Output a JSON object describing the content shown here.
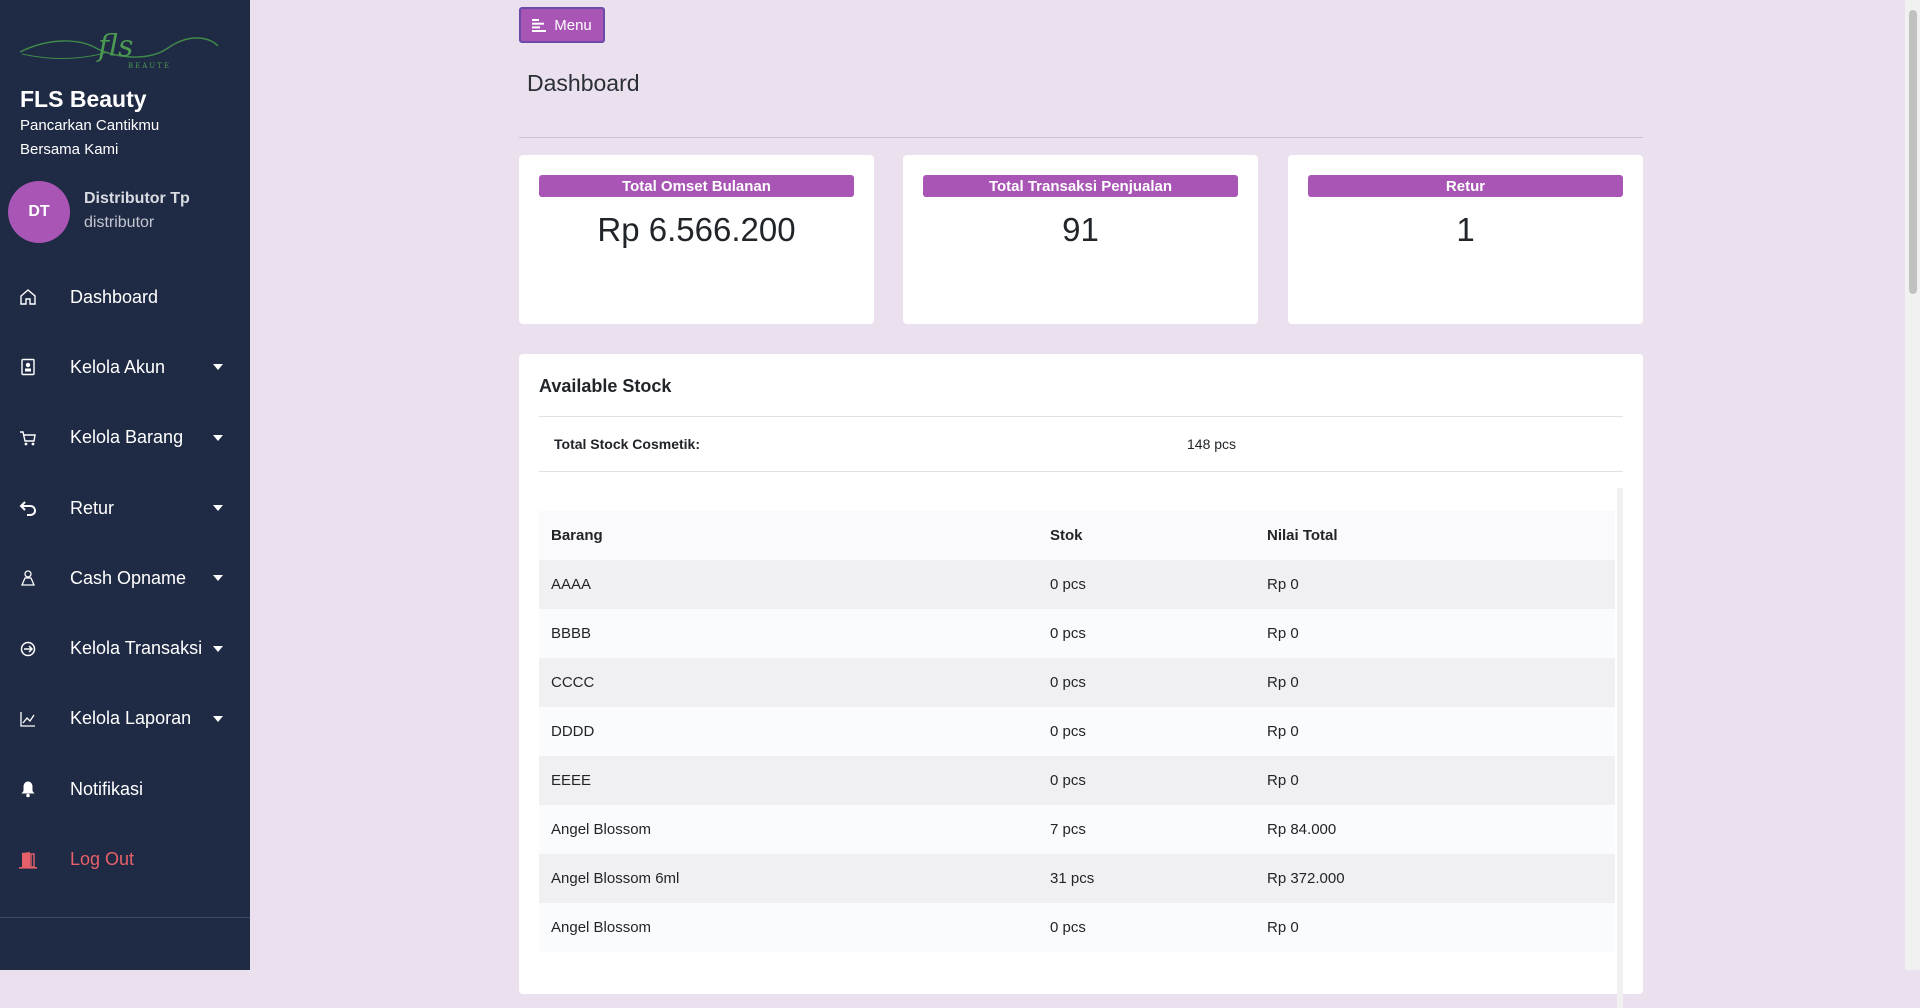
{
  "brand": {
    "name": "FLS Beauty",
    "tagline": "Pancarkan Cantikmu Bersama Kami"
  },
  "user": {
    "initials": "DT",
    "name": "Distributor Tp",
    "role": "distributor"
  },
  "nav": {
    "items": [
      {
        "label": "Dashboard",
        "icon": "home-icon",
        "dropdown": false
      },
      {
        "label": "Kelola Akun",
        "icon": "account-icon",
        "dropdown": true
      },
      {
        "label": "Kelola Barang",
        "icon": "cart-icon",
        "dropdown": true
      },
      {
        "label": "Retur",
        "icon": "return-icon",
        "dropdown": true
      },
      {
        "label": "Cash Opname",
        "icon": "cash-icon",
        "dropdown": true
      },
      {
        "label": "Kelola Transaksi",
        "icon": "transaction-icon",
        "dropdown": true
      },
      {
        "label": "Kelola Laporan",
        "icon": "report-chart-icon",
        "dropdown": true
      },
      {
        "label": "Notifikasi",
        "icon": "bell-icon",
        "dropdown": false
      },
      {
        "label": "Log Out",
        "icon": "logout-icon",
        "dropdown": false
      }
    ]
  },
  "toolbar": {
    "menu_label": "Menu"
  },
  "page": {
    "title": "Dashboard"
  },
  "cards": [
    {
      "label": "Total Omset Bulanan",
      "value": "Rp 6.566.200"
    },
    {
      "label": "Total Transaksi Penjualan",
      "value": "91"
    },
    {
      "label": "Retur",
      "value": "1"
    }
  ],
  "stock": {
    "title": "Available Stock",
    "total_label": "Total Stock Cosmetik:",
    "total_value": "148 pcs",
    "columns": [
      "Barang",
      "Stok",
      "Nilai Total"
    ],
    "rows": [
      [
        "AAAA",
        "0 pcs",
        "Rp 0"
      ],
      [
        "BBBB",
        "0 pcs",
        "Rp 0"
      ],
      [
        "CCCC",
        "0 pcs",
        "Rp 0"
      ],
      [
        "DDDD",
        "0 pcs",
        "Rp 0"
      ],
      [
        "EEEE",
        "0 pcs",
        "Rp 0"
      ],
      [
        "Angel Blossom",
        "7 pcs",
        "Rp 84.000"
      ],
      [
        "Angel Blossom 6ml",
        "31 pcs",
        "Rp 372.000"
      ],
      [
        "Angel Blossom",
        "0 pcs",
        "Rp 0"
      ]
    ]
  },
  "colors": {
    "sidebar_bg": "#1f2a44",
    "accent": "#a855b5",
    "page_bg": "#ebe0ee",
    "logout": "#e8606a"
  }
}
